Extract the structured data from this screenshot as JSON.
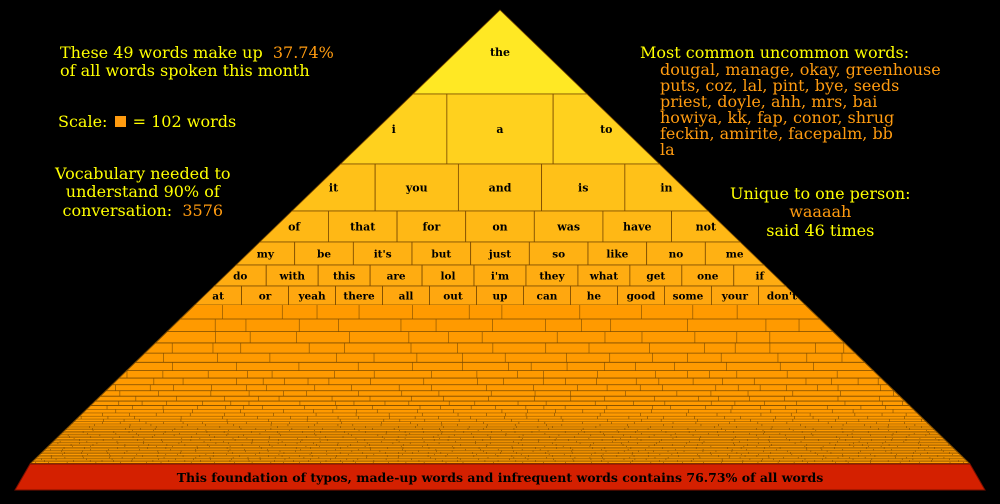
{
  "stats": {
    "line1_prefix": "These 49 words make up",
    "percent": "37.74%",
    "line2": "of all words spoken this month"
  },
  "scale": {
    "prefix": "Scale:",
    "suffix": "= 102 words"
  },
  "vocab": {
    "line1": "Vocabulary needed to",
    "line2": "understand 90% of",
    "line3_prefix": "conversation:",
    "value": "3576"
  },
  "uncommon": {
    "heading": "Most common uncommon words:",
    "lines": [
      "dougal, manage, okay, greenhouse",
      "puts, coz, lal, pint, bye, seeds",
      "priest, doyle, ahh, mrs, bai",
      "howiya, kk, fap, conor, shrug",
      "feckin, amirite, facepalm, bb",
      "la"
    ]
  },
  "unique": {
    "heading": "Unique to one person:",
    "word": "waaaah",
    "detail": "said 46 times"
  },
  "pyramid": {
    "rows": [
      [
        "the"
      ],
      [
        "i",
        "a",
        "to"
      ],
      [
        "it",
        "you",
        "and",
        "is",
        "in"
      ],
      [
        "of",
        "that",
        "for",
        "on",
        "was",
        "have",
        "not"
      ],
      [
        "my",
        "be",
        "it's",
        "but",
        "just",
        "so",
        "like",
        "no",
        "me"
      ],
      [
        "do",
        "with",
        "this",
        "are",
        "lol",
        "i'm",
        "they",
        "what",
        "get",
        "one",
        "if"
      ],
      [
        "at",
        "or",
        "yeah",
        "there",
        "all",
        "out",
        "up",
        "can",
        "he",
        "good",
        "some",
        "your",
        "don't"
      ]
    ],
    "foundation": "This foundation of typos, made-up words and infrequent words contains 76.73% of all words"
  },
  "colors": {
    "apex": "#ffff00",
    "mid": "#ffcc00",
    "base": "#ff8c00",
    "foundation": "#d42000",
    "accent": "#ff9b10",
    "outline": "#7a4a00"
  }
}
